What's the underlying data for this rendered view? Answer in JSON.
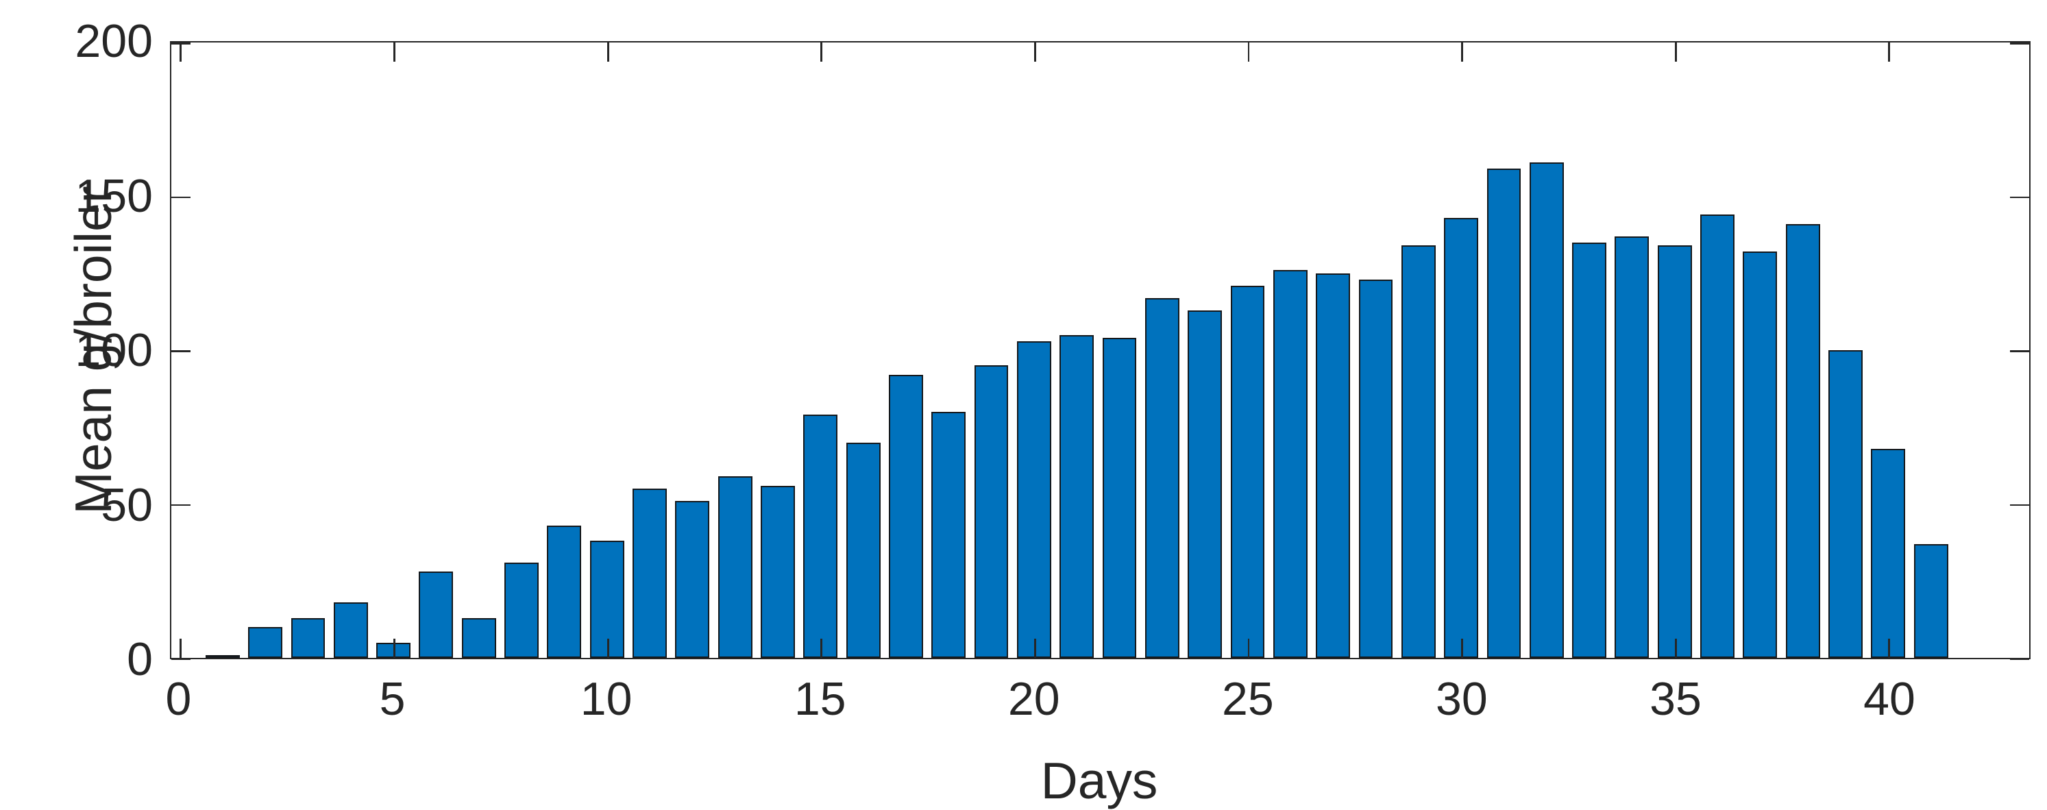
{
  "figure": {
    "background": "#FFFFFF"
  },
  "chart_data": {
    "type": "bar",
    "title": "",
    "xlabel": "Days",
    "ylabel": "Mean g/broiler",
    "x": [
      1,
      2,
      3,
      4,
      5,
      6,
      7,
      8,
      9,
      10,
      11,
      12,
      13,
      14,
      15,
      16,
      17,
      18,
      19,
      20,
      21,
      22,
      23,
      24,
      25,
      26,
      27,
      28,
      29,
      30,
      31,
      32,
      33,
      34,
      35,
      36,
      37,
      38,
      39,
      40,
      41
    ],
    "values": [
      0.3,
      10,
      13,
      18,
      5,
      28,
      13,
      31,
      43,
      38,
      55,
      51,
      59,
      56,
      79,
      70,
      92,
      80,
      95,
      103,
      105,
      104,
      117,
      113,
      121,
      126,
      125,
      123,
      134,
      143,
      159,
      161,
      135,
      137,
      134,
      144,
      132,
      141,
      100,
      68,
      37
    ],
    "xlim": [
      -0.2,
      43.3
    ],
    "ylim": [
      0,
      200
    ],
    "xticks": [
      0,
      5,
      10,
      15,
      20,
      25,
      30,
      35,
      40
    ],
    "xtick_labels": [
      "0",
      "5",
      "10",
      "15",
      "20",
      "25",
      "30",
      "35",
      "40"
    ],
    "yticks": [
      0,
      50,
      100,
      150,
      200
    ],
    "ytick_labels": [
      "0",
      "50",
      "100",
      "150",
      "200"
    ],
    "bar_width": 0.8,
    "grid": false,
    "legend": null,
    "tick_direction": "in",
    "box": true,
    "colors": {
      "bar_fill": "#0072BD",
      "bar_edge": "#14181C",
      "axis": "#262626",
      "text": "#262626",
      "background": "#FFFFFF"
    }
  }
}
